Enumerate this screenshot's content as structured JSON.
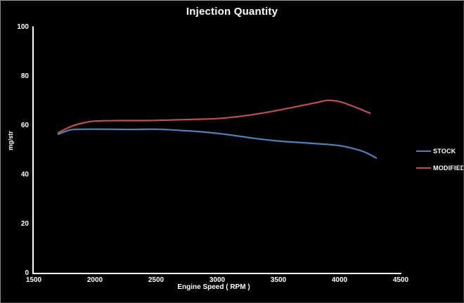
{
  "chart_data": {
    "type": "line",
    "title": "Injection Quantity",
    "xlabel": "Engine Speed ( RPM )",
    "ylabel": "mg/str",
    "xlim": [
      1500,
      4500
    ],
    "ylim": [
      0,
      100
    ],
    "x_ticks": [
      1500,
      2000,
      2500,
      3000,
      3500,
      4000,
      4500
    ],
    "y_ticks": [
      0,
      20,
      40,
      60,
      80,
      100
    ],
    "grid": false,
    "legend_position": "right",
    "background_color": "#000000",
    "axis_color": "#ffffff",
    "text_color": "#ffffff",
    "series": [
      {
        "name": "STOCK",
        "color": "#4f81bd",
        "x": [
          1700,
          1800,
          1900,
          2100,
          2300,
          2500,
          2700,
          2900,
          3100,
          3300,
          3500,
          3700,
          3900,
          4000,
          4100,
          4200,
          4300
        ],
        "y": [
          56.5,
          58.2,
          58.5,
          58.5,
          58.4,
          58.5,
          58.0,
          57.3,
          56.2,
          54.8,
          53.7,
          53.0,
          52.3,
          51.8,
          50.8,
          49.3,
          46.8
        ]
      },
      {
        "name": "MODIFIED",
        "color": "#c0504d",
        "x": [
          1700,
          1800,
          1900,
          2000,
          2200,
          2400,
          2600,
          2800,
          3000,
          3200,
          3400,
          3600,
          3800,
          3900,
          4000,
          4100,
          4250
        ],
        "y": [
          57.0,
          59.5,
          61.0,
          61.8,
          62.0,
          62.0,
          62.2,
          62.5,
          62.8,
          63.8,
          65.3,
          67.2,
          69.2,
          70.2,
          69.7,
          68.0,
          65.0
        ]
      }
    ]
  }
}
